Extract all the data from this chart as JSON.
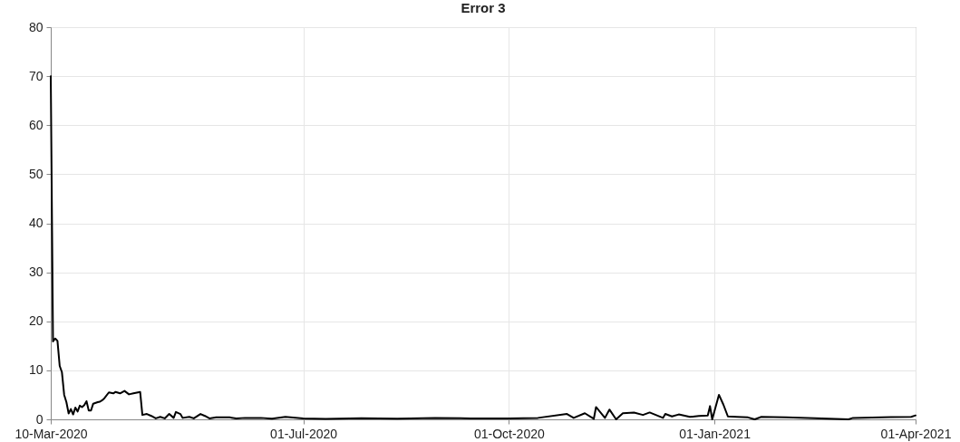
{
  "chart_data": {
    "type": "line",
    "title": "Error 3",
    "x": [
      "2020-03-10",
      "2020-03-11",
      "2020-03-12",
      "2020-03-13",
      "2020-03-14",
      "2020-03-15",
      "2020-03-16",
      "2020-03-17",
      "2020-03-18",
      "2020-03-19",
      "2020-03-20",
      "2020-03-21",
      "2020-03-22",
      "2020-03-23",
      "2020-03-24",
      "2020-03-25",
      "2020-03-26",
      "2020-03-27",
      "2020-03-28",
      "2020-03-29",
      "2020-03-31",
      "2020-04-01",
      "2020-04-02",
      "2020-04-03",
      "2020-04-05",
      "2020-04-07",
      "2020-04-08",
      "2020-04-10",
      "2020-04-12",
      "2020-04-14",
      "2020-04-16",
      "2020-04-18",
      "2020-04-19",
      "2020-04-20",
      "2020-04-22",
      "2020-04-24",
      "2020-04-26",
      "2020-04-28",
      "2020-04-30",
      "2020-05-02",
      "2020-05-04",
      "2020-05-05",
      "2020-05-07",
      "2020-05-08",
      "2020-05-11",
      "2020-05-13",
      "2020-05-16",
      "2020-05-18",
      "2020-05-20",
      "2020-05-23",
      "2020-05-29",
      "2020-06-01",
      "2020-06-05",
      "2020-06-12",
      "2020-06-17",
      "2020-06-23",
      "2020-07-01",
      "2020-07-11",
      "2020-07-27",
      "2020-08-12",
      "2020-08-29",
      "2020-09-14",
      "2020-10-01",
      "2020-10-14",
      "2020-10-27",
      "2020-10-30",
      "2020-11-04",
      "2020-11-08",
      "2020-11-09",
      "2020-11-13",
      "2020-11-15",
      "2020-11-18",
      "2020-11-21",
      "2020-11-26",
      "2020-11-30",
      "2020-12-03",
      "2020-12-09",
      "2020-12-10",
      "2020-12-13",
      "2020-12-16",
      "2020-12-21",
      "2020-12-25",
      "2020-12-29",
      "2020-12-30",
      "2020-12-31",
      "2021-01-03",
      "2021-01-05",
      "2021-01-07",
      "2021-01-11",
      "2021-01-16",
      "2021-01-19",
      "2021-01-22",
      "2021-02-02",
      "2021-02-15",
      "2021-03-02",
      "2021-03-04",
      "2021-03-21",
      "2021-03-30",
      "2021-04-01"
    ],
    "series": [
      {
        "color": "#000000",
        "values": [
          70,
          15.9,
          16.5,
          16,
          10.9,
          9.6,
          5,
          3.5,
          1.2,
          2.1,
          1,
          2.4,
          1.6,
          2.8,
          2.5,
          2.9,
          3.7,
          1.8,
          1.8,
          3.2,
          3.5,
          3.6,
          3.9,
          4.3,
          5.5,
          5.3,
          5.6,
          5.3,
          5.8,
          5.1,
          5.3,
          5.5,
          5.6,
          0.9,
          1.1,
          0.7,
          0.2,
          0.5,
          0.2,
          1.1,
          0.3,
          1.5,
          1.1,
          0.3,
          0.5,
          0.2,
          1.1,
          0.7,
          0.2,
          0.4,
          0.4,
          0.2,
          0.3,
          0.3,
          0.15,
          0.5,
          0.2,
          0.1,
          0.25,
          0.15,
          0.3,
          0.2,
          0.2,
          0.3,
          1.1,
          0.3,
          1.25,
          0.1,
          2.5,
          0.3,
          2,
          0,
          1.25,
          1.4,
          0.9,
          1.4,
          0.3,
          1.1,
          0.6,
          1,
          0.5,
          0.7,
          0.8,
          2.7,
          0,
          5,
          3,
          0.6,
          0.5,
          0.4,
          0,
          0.5,
          0.4,
          0.25,
          0,
          0.3,
          0.45,
          0.5,
          0.8
        ]
      }
    ],
    "xlim": [
      "2020-03-10",
      "2021-04-01"
    ],
    "xticks": [
      {
        "value": "2020-03-10",
        "label": "10-Mar-2020"
      },
      {
        "value": "2020-07-01",
        "label": "01-Jul-2020"
      },
      {
        "value": "2020-10-01",
        "label": "01-Oct-2020"
      },
      {
        "value": "2021-01-01",
        "label": "01-Jan-2021"
      },
      {
        "value": "2021-04-01",
        "label": "01-Apr-2021"
      }
    ],
    "ylim": [
      0,
      80
    ],
    "yticks": [
      0,
      10,
      20,
      30,
      40,
      50,
      60,
      70,
      80
    ],
    "grid": true,
    "line_style": "solid"
  }
}
